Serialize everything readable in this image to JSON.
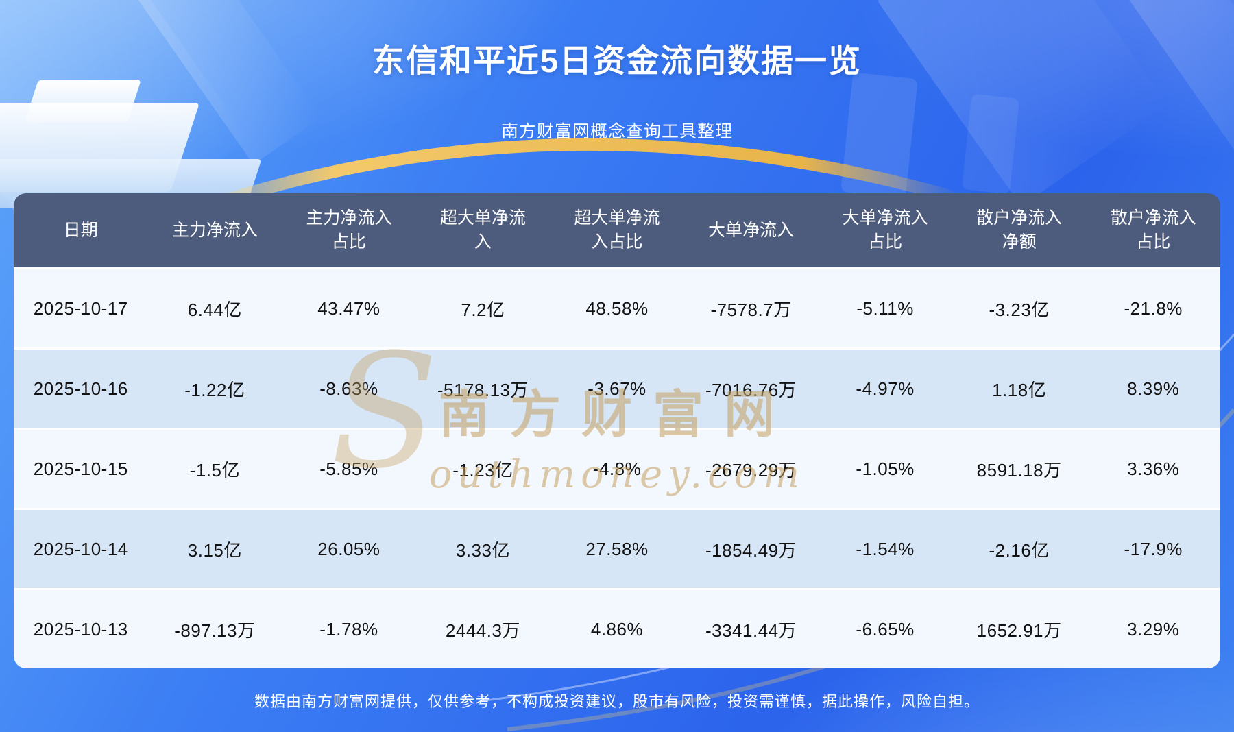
{
  "page": {
    "title": "东信和平近5日资金流向数据一览",
    "subtitle": "南方财富网概念查询工具整理",
    "footer": "数据由南方财富网提供，仅供参考，不构成投资建议，股市有风险，投资需谨慎，据此操作，风险自担。",
    "watermark": {
      "initial": "S",
      "cn": "南方财富网",
      "en": "outhmoney.com"
    }
  },
  "table": {
    "headers": [
      "日期",
      "主力净流入",
      "主力净流入\n占比",
      "超大单净流\n入",
      "超大单净流\n入占比",
      "大单净流入",
      "大单净流入\n占比",
      "散户净流入\n净额",
      "散户净流入\n占比"
    ],
    "rows": [
      [
        "2025-10-17",
        "6.44亿",
        "43.47%",
        "7.2亿",
        "48.58%",
        "-7578.7万",
        "-5.11%",
        "-3.23亿",
        "-21.8%"
      ],
      [
        "2025-10-16",
        "-1.22亿",
        "-8.63%",
        "-5178.13万",
        "-3.67%",
        "-7016.76万",
        "-4.97%",
        "1.18亿",
        "8.39%"
      ],
      [
        "2025-10-15",
        "-1.5亿",
        "-5.85%",
        "-1.23亿",
        "-4.8%",
        "-2679.29万",
        "-1.05%",
        "8591.18万",
        "3.36%"
      ],
      [
        "2025-10-14",
        "3.15亿",
        "26.05%",
        "3.33亿",
        "27.58%",
        "-1854.49万",
        "-1.54%",
        "-2.16亿",
        "-17.9%"
      ],
      [
        "2025-10-13",
        "-897.13万",
        "-1.78%",
        "2444.3万",
        "4.86%",
        "-3341.44万",
        "-6.65%",
        "1652.91万",
        "3.29%"
      ]
    ]
  },
  "colors": {
    "header_bg": "#4d5c7d",
    "row_bg": "#f3f8fe",
    "row_alt_bg": "#d7e6f7",
    "accent_gold": "#edc06a",
    "background_blue": "#3c7ef4",
    "watermark_gold": "#c59e5e"
  },
  "chart_data": {
    "type": "table",
    "title": "东信和平近5日资金流向数据一览",
    "subtitle": "南方财富网概念查询工具整理",
    "columns": [
      "日期",
      "主力净流入",
      "主力净流入占比",
      "超大单净流入",
      "超大单净流入占比",
      "大单净流入",
      "大单净流入占比",
      "散户净流入净额",
      "散户净流入占比"
    ],
    "rows": [
      [
        "2025-10-17",
        "6.44亿",
        "43.47%",
        "7.2亿",
        "48.58%",
        "-7578.7万",
        "-5.11%",
        "-3.23亿",
        "-21.8%"
      ],
      [
        "2025-10-16",
        "-1.22亿",
        "-8.63%",
        "-5178.13万",
        "-3.67%",
        "-7016.76万",
        "-4.97%",
        "1.18亿",
        "8.39%"
      ],
      [
        "2025-10-15",
        "-1.5亿",
        "-5.85%",
        "-1.23亿",
        "-4.8%",
        "-2679.29万",
        "-1.05%",
        "8591.18万",
        "3.36%"
      ],
      [
        "2025-10-14",
        "3.15亿",
        "26.05%",
        "3.33亿",
        "27.58%",
        "-1854.49万",
        "-1.54%",
        "-2.16亿",
        "-17.9%"
      ],
      [
        "2025-10-13",
        "-897.13万",
        "-1.78%",
        "2444.3万",
        "4.86%",
        "-3341.44万",
        "-6.65%",
        "1652.91万",
        "3.29%"
      ]
    ],
    "notes": "数据由南方财富网提供，仅供参考，不构成投资建议，股市有风险，投资需谨慎，据此操作，风险自担。"
  }
}
